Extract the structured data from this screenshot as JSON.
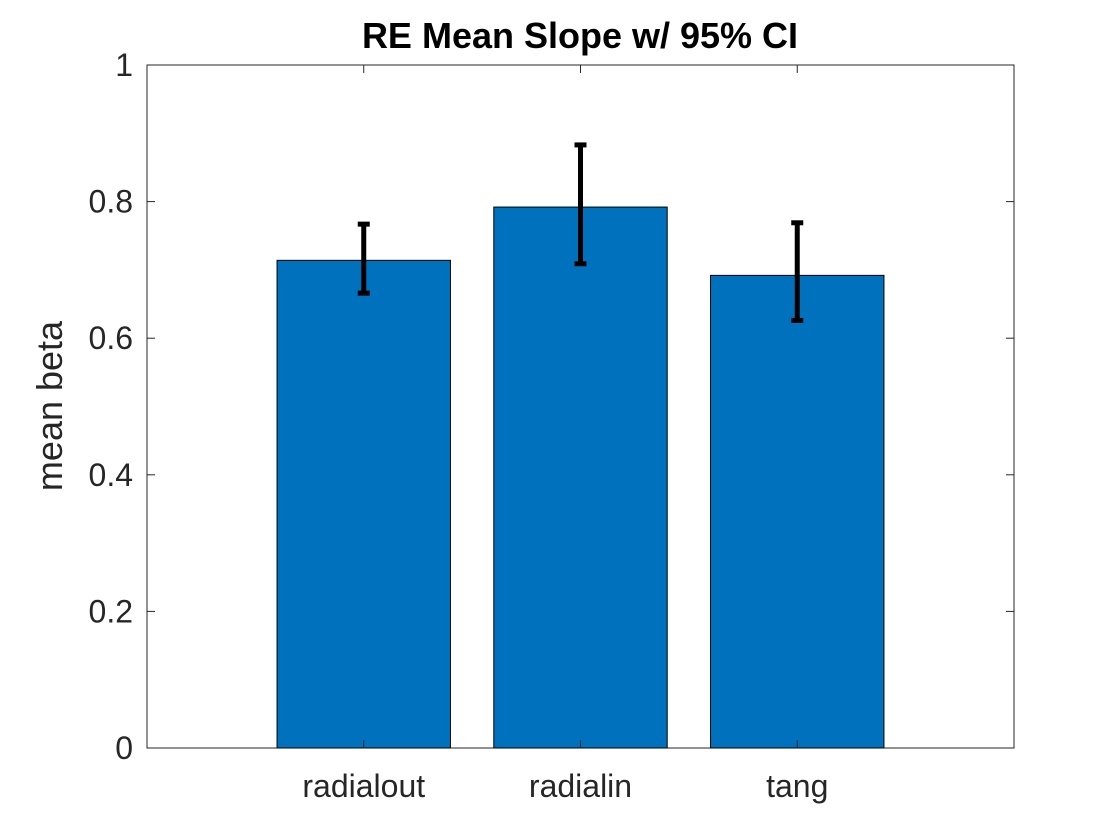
{
  "chart_data": {
    "type": "bar",
    "title": "RE Mean Slope w/ 95% CI",
    "xlabel": "",
    "ylabel": "mean beta",
    "categories": [
      "radialout",
      "radialin",
      "tang"
    ],
    "values": [
      0.714,
      0.792,
      0.692
    ],
    "ci_lower": [
      0.666,
      0.709,
      0.626
    ],
    "ci_upper": [
      0.767,
      0.883,
      0.769
    ],
    "ylim": [
      0,
      1
    ],
    "yticks": [
      0,
      0.2,
      0.4,
      0.6,
      0.8,
      1
    ],
    "ytick_labels": [
      "0",
      "0.2",
      "0.4",
      "0.6",
      "0.8",
      "1"
    ],
    "grid": false,
    "legend": "none",
    "colors": {
      "bar_fill": "#0072BD",
      "bar_edge": "#000000",
      "error_bar": "#000000",
      "axis": "#262626"
    }
  }
}
